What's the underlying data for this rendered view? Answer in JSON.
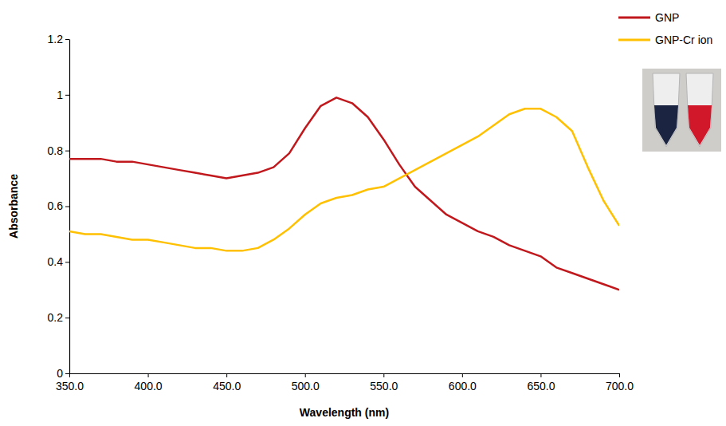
{
  "chart_data": {
    "type": "line",
    "x_label": "Wavelength (nm)",
    "y_label": "Absorbance",
    "x": [
      350,
      360,
      370,
      380,
      390,
      400,
      410,
      420,
      430,
      440,
      450,
      460,
      470,
      480,
      490,
      500,
      510,
      520,
      530,
      540,
      550,
      560,
      570,
      580,
      590,
      600,
      610,
      620,
      630,
      640,
      650,
      660,
      670,
      680,
      690,
      700
    ],
    "series": [
      {
        "name": "GNP",
        "color": "#c0181c",
        "values": [
          0.77,
          0.77,
          0.77,
          0.76,
          0.76,
          0.75,
          0.74,
          0.73,
          0.72,
          0.71,
          0.7,
          0.71,
          0.72,
          0.74,
          0.79,
          0.88,
          0.96,
          0.99,
          0.97,
          0.92,
          0.84,
          0.75,
          0.67,
          0.62,
          0.57,
          0.54,
          0.51,
          0.49,
          0.46,
          0.44,
          0.42,
          0.38,
          0.36,
          0.34,
          0.32,
          0.3
        ]
      },
      {
        "name": "GNP-Cr ion",
        "color": "#ffc000",
        "values": [
          0.51,
          0.5,
          0.5,
          0.49,
          0.48,
          0.48,
          0.47,
          0.46,
          0.45,
          0.45,
          0.44,
          0.44,
          0.45,
          0.48,
          0.52,
          0.57,
          0.61,
          0.63,
          0.64,
          0.66,
          0.67,
          0.7,
          0.73,
          0.76,
          0.79,
          0.82,
          0.85,
          0.89,
          0.93,
          0.95,
          0.95,
          0.92,
          0.87,
          0.74,
          0.62,
          0.53
        ]
      }
    ],
    "xlim": [
      350,
      700
    ],
    "xticks": [
      {
        "value": 350,
        "label": "350.0"
      },
      {
        "value": 400,
        "label": "400.0"
      },
      {
        "value": 450,
        "label": "450.0"
      },
      {
        "value": 500,
        "label": "500.0"
      },
      {
        "value": 550,
        "label": "550.0"
      },
      {
        "value": 600,
        "label": "600.0"
      },
      {
        "value": 650,
        "label": "650.0"
      },
      {
        "value": 700,
        "label": "700.0"
      }
    ],
    "ylim": [
      0,
      1.2
    ],
    "yticks": [
      0,
      0.2,
      0.4,
      0.6,
      0.8,
      1,
      1.2
    ],
    "grid": false,
    "legend": "top-right"
  }
}
